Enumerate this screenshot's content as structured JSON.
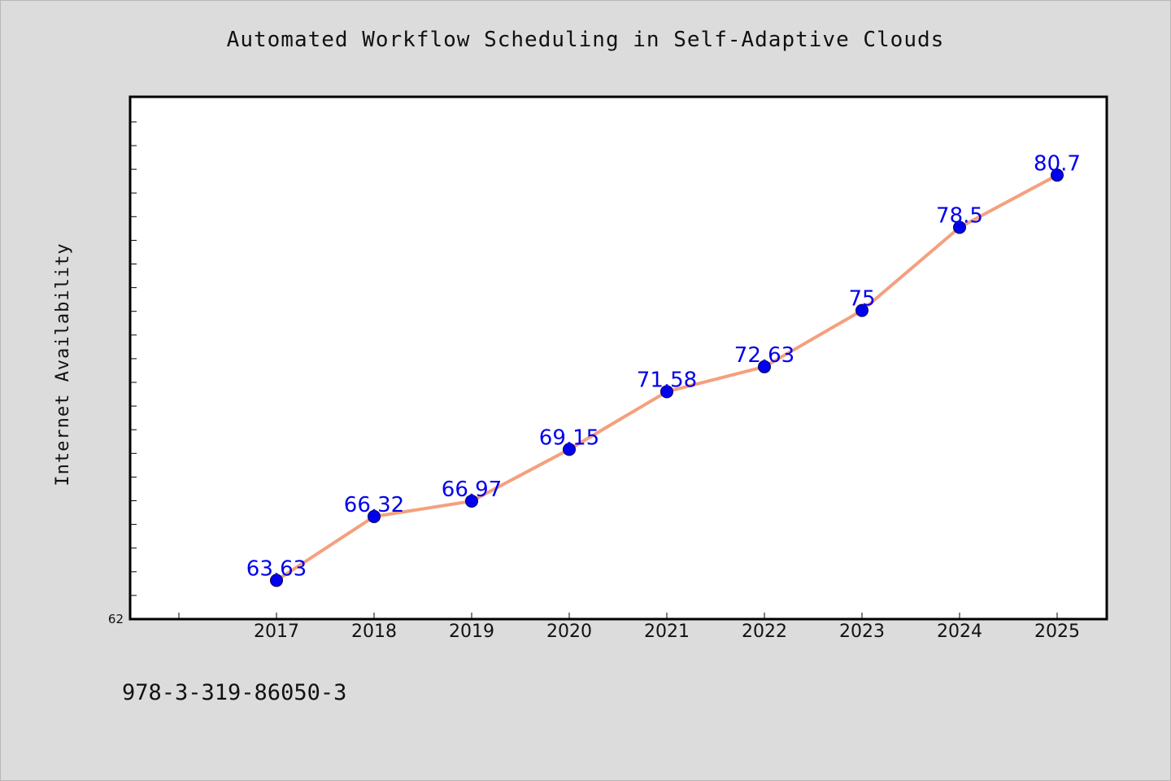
{
  "chart_data": {
    "type": "line",
    "title": "Automated Workflow Scheduling in Self-Adaptive Clouds",
    "xlabel": "",
    "ylabel": "Internet Availability",
    "categories": [
      "2017",
      "2018",
      "2019",
      "2020",
      "2021",
      "2022",
      "2023",
      "2024",
      "2025"
    ],
    "series": [
      {
        "values": [
          63.63,
          66.32,
          66.97,
          69.15,
          71.58,
          72.63,
          75,
          78.5,
          80.7
        ],
        "labels": [
          "63.63",
          "66.32",
          "66.97",
          "69.15",
          "71.58",
          "72.63",
          "75",
          "78.5",
          "80.7"
        ]
      }
    ],
    "ylim": [
      62,
      84
    ],
    "y_tick_labels": [
      "62"
    ],
    "grid": false,
    "legend": "none",
    "colors": {
      "line": "#f4a07e",
      "marker": "#0000ee",
      "marker_edge": "#00005a",
      "data_label": "#0000ee",
      "plot_background": "#ffffff",
      "page_background": "#dcdcdc"
    }
  },
  "footnote": "978-3-319-86050-3"
}
